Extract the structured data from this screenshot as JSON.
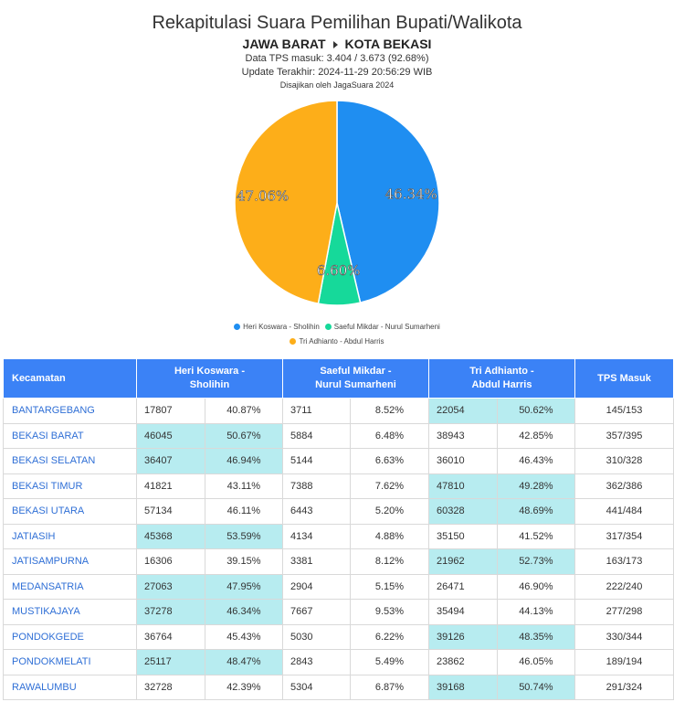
{
  "title": "Rekapitulasi Suara Pemilihan Bupati/Walikota",
  "region": {
    "province": "JAWA BARAT",
    "city": "KOTA BEKASI"
  },
  "tps_info": "Data TPS masuk: 3.404 / 3.673 (92.68%)",
  "update_info": "Update Terakhir: 2024-11-29 20:56:29 WIB",
  "source_info": "Disajikan oleh JagaSuara 2024",
  "colors": {
    "heri": "#1f8ef1",
    "saeful": "#16d99a",
    "tri": "#fdae19",
    "header": "#3b82f6",
    "win": "#b7ecf0"
  },
  "chart_data": {
    "type": "pie",
    "slices": [
      {
        "label": "Heri Koswara - Sholihin",
        "value": 46.34,
        "display": "46.34%",
        "color": "#1f8ef1"
      },
      {
        "label": "Saeful Mikdar - Nurul Sumarheni",
        "value": 6.6,
        "display": "6.60%",
        "color": "#16d99a"
      },
      {
        "label": "Tri Adhianto - Abdul Harris",
        "value": 47.06,
        "display": "47.06%",
        "color": "#fdae19"
      }
    ]
  },
  "table": {
    "headers": {
      "kecamatan": "Kecamatan",
      "c1_line1": "Heri Koswara -",
      "c1_line2": "Sholihin",
      "c2_line1": "Saeful Mikdar -",
      "c2_line2": "Nurul Sumarheni",
      "c3_line1": "Tri Adhianto -",
      "c3_line2": "Abdul Harris",
      "tps": "TPS Masuk"
    },
    "rows": [
      {
        "kec": "BANTARGEBANG",
        "c1": [
          "17807",
          "40.87%"
        ],
        "c2": [
          "3711",
          "8.52%"
        ],
        "c3": [
          "22054",
          "50.62%"
        ],
        "tps": "145/153",
        "win": 3
      },
      {
        "kec": "BEKASI BARAT",
        "c1": [
          "46045",
          "50.67%"
        ],
        "c2": [
          "5884",
          "6.48%"
        ],
        "c3": [
          "38943",
          "42.85%"
        ],
        "tps": "357/395",
        "win": 1
      },
      {
        "kec": "BEKASI SELATAN",
        "c1": [
          "36407",
          "46.94%"
        ],
        "c2": [
          "5144",
          "6.63%"
        ],
        "c3": [
          "36010",
          "46.43%"
        ],
        "tps": "310/328",
        "win": 1
      },
      {
        "kec": "BEKASI TIMUR",
        "c1": [
          "41821",
          "43.11%"
        ],
        "c2": [
          "7388",
          "7.62%"
        ],
        "c3": [
          "47810",
          "49.28%"
        ],
        "tps": "362/386",
        "win": 3
      },
      {
        "kec": "BEKASI UTARA",
        "c1": [
          "57134",
          "46.11%"
        ],
        "c2": [
          "6443",
          "5.20%"
        ],
        "c3": [
          "60328",
          "48.69%"
        ],
        "tps": "441/484",
        "win": 3
      },
      {
        "kec": "JATIASIH",
        "c1": [
          "45368",
          "53.59%"
        ],
        "c2": [
          "4134",
          "4.88%"
        ],
        "c3": [
          "35150",
          "41.52%"
        ],
        "tps": "317/354",
        "win": 1
      },
      {
        "kec": "JATISAMPURNA",
        "c1": [
          "16306",
          "39.15%"
        ],
        "c2": [
          "3381",
          "8.12%"
        ],
        "c3": [
          "21962",
          "52.73%"
        ],
        "tps": "163/173",
        "win": 3
      },
      {
        "kec": "MEDANSATRIA",
        "c1": [
          "27063",
          "47.95%"
        ],
        "c2": [
          "2904",
          "5.15%"
        ],
        "c3": [
          "26471",
          "46.90%"
        ],
        "tps": "222/240",
        "win": 1
      },
      {
        "kec": "MUSTIKAJAYA",
        "c1": [
          "37278",
          "46.34%"
        ],
        "c2": [
          "7667",
          "9.53%"
        ],
        "c3": [
          "35494",
          "44.13%"
        ],
        "tps": "277/298",
        "win": 1
      },
      {
        "kec": "PONDOKGEDE",
        "c1": [
          "36764",
          "45.43%"
        ],
        "c2": [
          "5030",
          "6.22%"
        ],
        "c3": [
          "39126",
          "48.35%"
        ],
        "tps": "330/344",
        "win": 3
      },
      {
        "kec": "PONDOKMELATI",
        "c1": [
          "25117",
          "48.47%"
        ],
        "c2": [
          "2843",
          "5.49%"
        ],
        "c3": [
          "23862",
          "46.05%"
        ],
        "tps": "189/194",
        "win": 1
      },
      {
        "kec": "RAWALUMBU",
        "c1": [
          "32728",
          "42.39%"
        ],
        "c2": [
          "5304",
          "6.87%"
        ],
        "c3": [
          "39168",
          "50.74%"
        ],
        "tps": "291/324",
        "win": 3
      }
    ]
  }
}
